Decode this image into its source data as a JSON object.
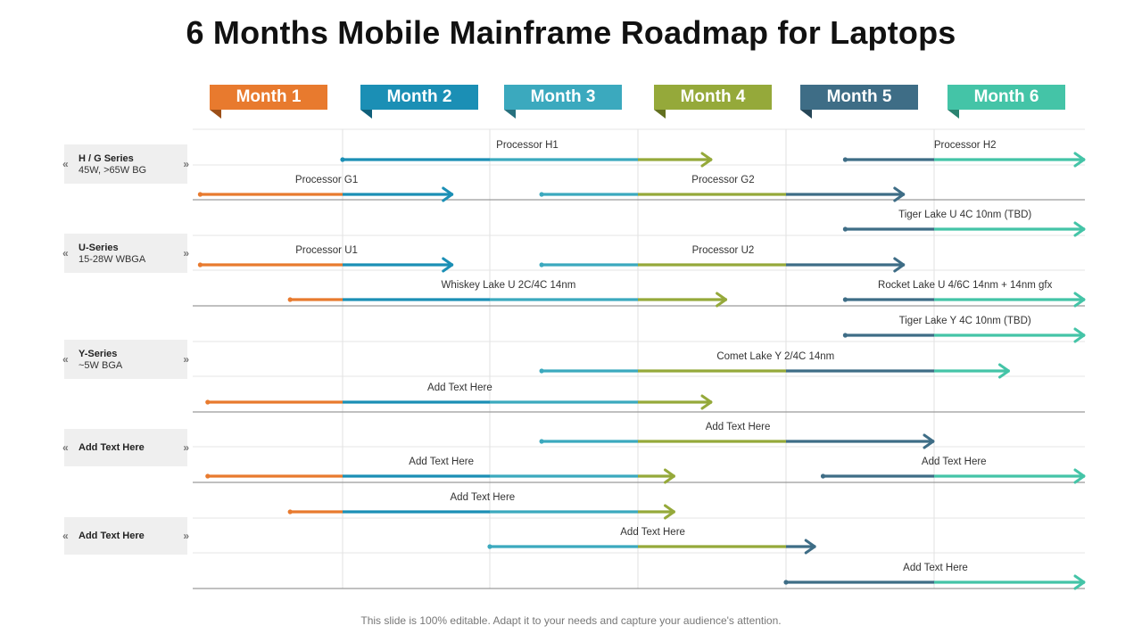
{
  "title": "6 Months Mobile Mainframe Roadmap for Laptops",
  "months": [
    {
      "label": "Month 1",
      "color": "#E87A2E",
      "fold": "#9c4f17"
    },
    {
      "label": "Month 2",
      "color": "#1B8FB5",
      "fold": "#0f5f7a"
    },
    {
      "label": "Month 3",
      "color": "#3BA9BE",
      "fold": "#26707e"
    },
    {
      "label": "Month 4",
      "color": "#95A93A",
      "fold": "#62701f"
    },
    {
      "label": "Month 5",
      "color": "#3E6D86",
      "fold": "#264657"
    },
    {
      "label": "Month 6",
      "color": "#44C4A7",
      "fold": "#2a8370"
    }
  ],
  "row_groups": [
    {
      "title": "H / G Series",
      "subtitle": "45W, >65W BG"
    },
    {
      "title": "U-Series",
      "subtitle": "15-28W WBGA"
    },
    {
      "title": "Y-Series",
      "subtitle": "~5W BGA"
    },
    {
      "title": "Add Text Here",
      "subtitle": ""
    },
    {
      "title": "Add Text Here",
      "subtitle": ""
    }
  ],
  "bars": [
    {
      "label": "Processor H1",
      "start": 1.0,
      "end": 3.5
    },
    {
      "label": "Processor H2",
      "start": 4.4,
      "end": 6.0
    },
    {
      "label": "Processor G1",
      "start": 0.05,
      "end": 1.75
    },
    {
      "label": "Processor G2",
      "start": 2.35,
      "end": 4.8
    },
    {
      "label": "Tiger Lake U 4C 10nm (TBD)",
      "start": 4.4,
      "end": 6.0
    },
    {
      "label": "Processor U1",
      "start": 0.05,
      "end": 1.75
    },
    {
      "label": "Processor U2",
      "start": 2.35,
      "end": 4.8
    },
    {
      "label": "Whiskey Lake U 2C/4C 14nm",
      "start": 0.65,
      "end": 3.6
    },
    {
      "label": "Rocket Lake U 4/6C 14nm + 14nm gfx",
      "start": 4.4,
      "end": 6.0
    },
    {
      "label": "Tiger Lake Y 4C 10nm (TBD)",
      "start": 4.4,
      "end": 6.0
    },
    {
      "label": "Comet Lake Y 2/4C 14nm",
      "start": 2.35,
      "end": 5.5
    },
    {
      "label": "Add Text Here",
      "start": 0.1,
      "end": 3.5
    },
    {
      "label": "Add Text Here",
      "start": 2.35,
      "end": 5.0
    },
    {
      "label": "Add Text Here",
      "start": 0.1,
      "end": 3.25
    },
    {
      "label": "Add Text Here",
      "start": 4.25,
      "end": 6.0
    },
    {
      "label": "Add Text Here",
      "start": 0.65,
      "end": 3.25
    },
    {
      "label": "Add Text Here",
      "start": 2.0,
      "end": 4.2
    },
    {
      "label": "Add Text Here",
      "start": 4.0,
      "end": 6.0
    }
  ],
  "footer": "This slide is 100% editable. Adapt it to your needs and capture your audience's attention."
}
